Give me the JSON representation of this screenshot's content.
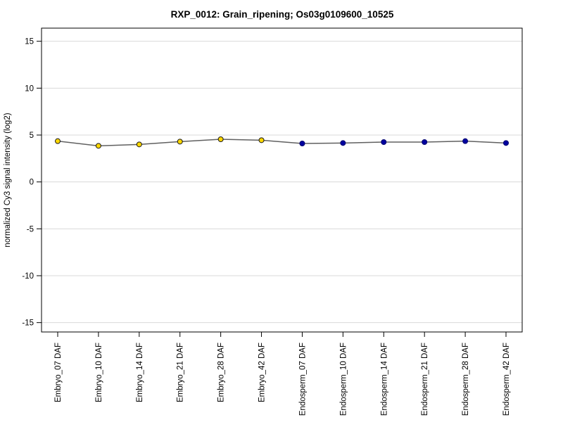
{
  "figure": {
    "title": "RXP_0012: Grain_ripening; Os03g0109600_10525"
  },
  "chart_data": {
    "type": "line",
    "title": "RXP_0012: Grain_ripening; Os03g0109600_10525",
    "xlabel": "",
    "ylabel": "normalized Cy3 signal intensity (log2)",
    "ylim": [
      -16,
      16.4
    ],
    "yticks": [
      -15,
      -10,
      -5,
      0,
      5,
      10,
      15
    ],
    "grid": true,
    "legend_position": "none",
    "categories": [
      "Embryo_07 DAF",
      "Embryo_10 DAF",
      "Embryo_14 DAF",
      "Embryo_21 DAF",
      "Embryo_28 DAF",
      "Embryo_42 DAF",
      "Endosperm_07 DAF",
      "Endosperm_10 DAF",
      "Endosperm_14 DAF",
      "Endosperm_21 DAF",
      "Endosperm_28 DAF",
      "Endosperm_42 DAF"
    ],
    "values": [
      4.35,
      3.85,
      4.0,
      4.3,
      4.55,
      4.45,
      4.1,
      4.15,
      4.25,
      4.25,
      4.35,
      4.15
    ],
    "point_groups": [
      "Embryo",
      "Embryo",
      "Embryo",
      "Embryo",
      "Embryo",
      "Embryo",
      "Endosperm",
      "Endosperm",
      "Endosperm",
      "Endosperm",
      "Endosperm",
      "Endosperm"
    ],
    "group_colors": {
      "Embryo": "#FFD700",
      "Endosperm": "#0000A0"
    },
    "point_border_colors": {
      "Embryo": "#1a1a1a",
      "Endosperm": "#00006e"
    },
    "line_color": "#606060",
    "grid_color": "#d9d9d9",
    "axis_color": "#000000",
    "background_color": "#ffffff"
  }
}
